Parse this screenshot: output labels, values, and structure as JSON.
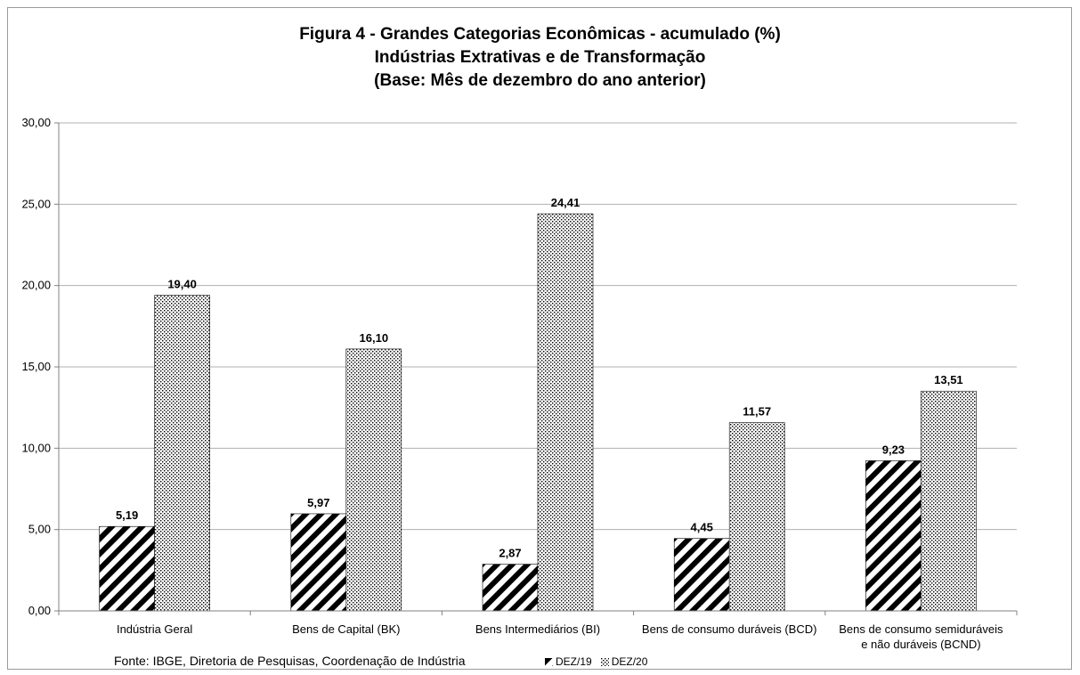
{
  "chart_data": {
    "type": "bar",
    "title_lines": [
      "Figura 4 - Grandes Categorias Econômicas - acumulado (%)",
      "Indústrias Extrativas e de Transformação",
      "(Base: Mês de dezembro do ano anterior)"
    ],
    "categories": [
      [
        "Indústria Geral"
      ],
      [
        "Bens de Capital (BK)"
      ],
      [
        "Bens Intermediários (BI)"
      ],
      [
        "Bens de consumo duráveis (BCD)"
      ],
      [
        "Bens de consumo semiduráveis",
        "e não duráveis (BCND)"
      ]
    ],
    "series": [
      {
        "name": "DEZ/19",
        "values": [
          5.19,
          5.97,
          2.87,
          4.45,
          9.23
        ],
        "labels": [
          "5,19",
          "5,97",
          "2,87",
          "4,45",
          "9,23"
        ],
        "pattern": "diagonal-stripes"
      },
      {
        "name": "DEZ/20",
        "values": [
          19.4,
          16.1,
          24.41,
          11.57,
          13.51
        ],
        "labels": [
          "19,40",
          "16,10",
          "24,41",
          "11,57",
          "13,51"
        ],
        "pattern": "crosshatch"
      }
    ],
    "ylim": [
      0,
      30
    ],
    "yticks": [
      "0,00",
      "5,00",
      "10,00",
      "15,00",
      "20,00",
      "25,00",
      "30,00"
    ],
    "grid": true,
    "legend_position": "bottom"
  },
  "source": "Fonte: IBGE, Diretoria de Pesquisas, Coordenação de Indústria",
  "legend": {
    "series1": "DEZ/19",
    "series2": "DEZ/20"
  },
  "colors": {
    "bar_ink": "#000000",
    "grid": "#b0b0b0",
    "axis": "#808080"
  }
}
